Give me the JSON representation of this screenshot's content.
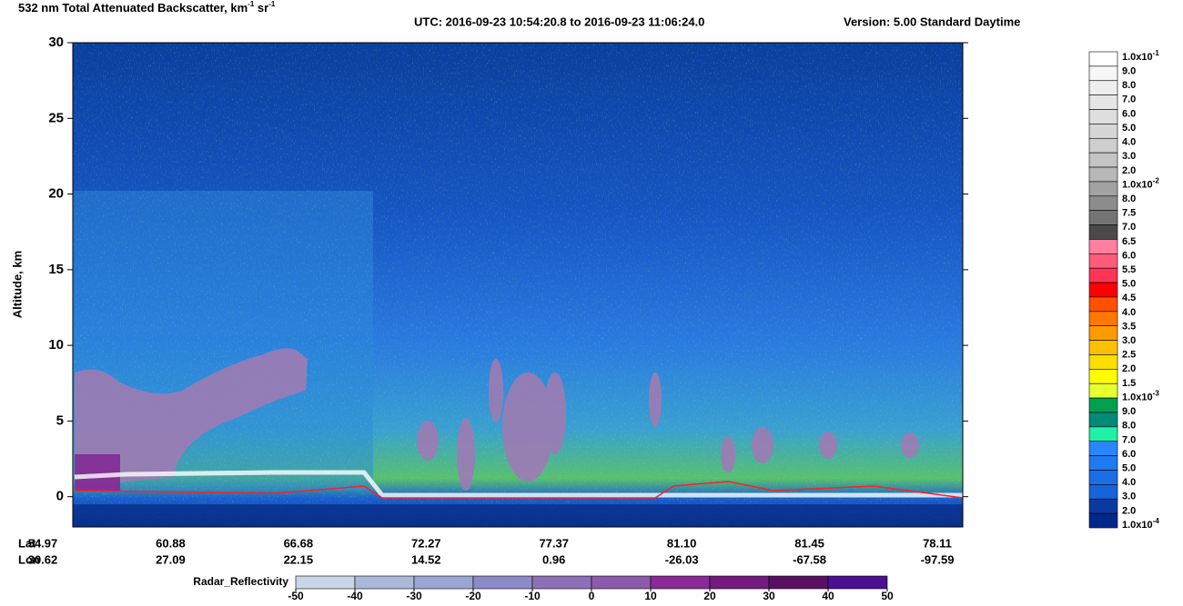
{
  "chart_data": {
    "type": "curtain",
    "title": {
      "main": "532 nm Total Attenuated Backscatter, km",
      "sup1": "-1",
      "mid": " sr",
      "sup2": "-1",
      "utc": "UTC:  2016-09-23 10:54:20.8  to  2016-09-23 11:06:24.0",
      "version": "Version: 5.00  Standard  Daytime"
    },
    "y_label": "Altitude, km",
    "ylim": [
      -2,
      30
    ],
    "yticks": [
      0,
      5,
      10,
      15,
      20,
      25,
      30
    ],
    "x_rows": [
      {
        "name": "Lat",
        "labels": [
          "54.97",
          "60.88",
          "66.68",
          "72.27",
          "77.37",
          "81.10",
          "81.45",
          "78.11"
        ]
      },
      {
        "name": "Lon",
        "labels": [
          "30.62",
          "27.09",
          "22.15",
          "14.52",
          "0.96",
          "-26.03",
          "-67.58",
          "-97.59"
        ]
      }
    ],
    "colorbar": {
      "labels": [
        {
          "mantissa": "1.0x10",
          "exponent": "-1"
        },
        "9.0",
        "8.0",
        "7.0",
        "6.0",
        "5.0",
        "4.0",
        "3.0",
        "2.0",
        {
          "mantissa": "1.0x10",
          "exponent": "-2"
        },
        "8.0",
        "7.5",
        "7.0",
        "6.5",
        "6.0",
        "5.5",
        "5.0",
        "4.5",
        "4.0",
        "3.5",
        "3.0",
        "2.5",
        "2.0",
        "1.5",
        {
          "mantissa": "1.0x10",
          "exponent": "-3"
        },
        "9.0",
        "8.0",
        "7.0",
        "6.0",
        "5.0",
        "4.0",
        "3.0",
        "2.0",
        {
          "mantissa": "1.0x10",
          "exponent": "-4"
        }
      ],
      "colors": [
        "#ffffff",
        "#f6f6f6",
        "#eeeeee",
        "#e6e6e6",
        "#dedede",
        "#d6d6d6",
        "#cecece",
        "#c4c4c4",
        "#b8b8b8",
        "#a2a2a2",
        "#8c8c8c",
        "#747474",
        "#4a4a4a",
        "#ff80a0",
        "#ff5c7c",
        "#ff3456",
        "#ff0000",
        "#ff5000",
        "#ff7800",
        "#ff9a00",
        "#ffc000",
        "#ffde00",
        "#ffff00",
        "#e8ff30",
        "#00a050",
        "#008a78",
        "#20f0a8",
        "#2a86ff",
        "#1f7af2",
        "#1a6ee6",
        "#1664da",
        "#0a3a9e",
        "#00288a"
      ]
    },
    "radar": {
      "label": "Radar_Reflectivity",
      "ticks": [
        -50,
        -40,
        -30,
        -20,
        -10,
        0,
        10,
        20,
        30,
        40,
        50
      ],
      "colors": [
        "#c8d6e6",
        "#aab8da",
        "#9aa6d2",
        "#8c8ac6",
        "#8e70b6",
        "#8c5aac",
        "#8a2a98",
        "#741a80",
        "#5a1062",
        "#4a1090"
      ]
    }
  }
}
